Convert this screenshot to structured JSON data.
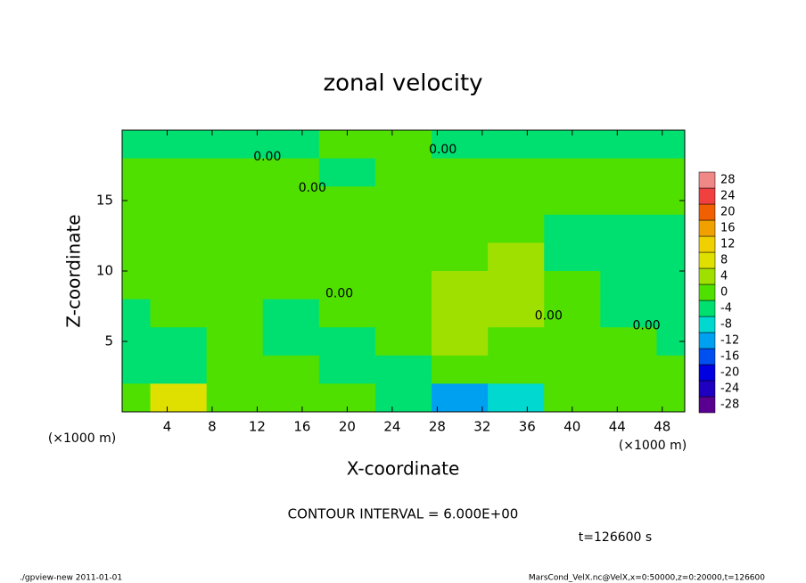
{
  "chart_data": {
    "type": "contour",
    "title": "zonal velocity",
    "xlabel": "X-coordinate",
    "ylabel": "Z-coordinate",
    "xunit": "(×1000 m)",
    "yunit": "(×1000 m)",
    "xlim": [
      0,
      50
    ],
    "ylim": [
      0,
      20
    ],
    "xticks": [
      4,
      8,
      12,
      16,
      20,
      24,
      28,
      32,
      36,
      40,
      44,
      48
    ],
    "yticks": [
      5,
      10,
      15
    ],
    "x": [
      0,
      5,
      10,
      15,
      20,
      25,
      30,
      35,
      40,
      45,
      50
    ],
    "z": [
      19,
      17,
      15,
      13,
      11,
      9,
      7,
      5,
      3,
      1
    ],
    "values": [
      [
        -1,
        -1,
        -2,
        -1,
        1,
        1,
        -1,
        -1,
        -2,
        -1,
        -1
      ],
      [
        2,
        2,
        1,
        1,
        -1,
        1,
        2,
        1,
        1,
        2,
        1
      ],
      [
        2,
        2,
        2,
        3,
        2,
        1,
        2,
        1,
        1,
        0,
        1
      ],
      [
        2,
        3,
        3,
        3,
        3,
        2,
        2,
        2,
        -1,
        -2,
        -1
      ],
      [
        2,
        3,
        3,
        3,
        3,
        2,
        3,
        4,
        -2,
        -2,
        -1
      ],
      [
        1,
        2,
        2,
        2,
        2,
        2,
        6,
        5,
        1,
        -2,
        -1
      ],
      [
        -2,
        1,
        1,
        -1,
        1,
        2,
        7,
        6,
        2,
        -2,
        -4
      ],
      [
        -3,
        -4,
        1,
        -1,
        -2,
        3,
        5,
        3,
        2,
        0,
        -3
      ],
      [
        -3,
        -3,
        0,
        2,
        -1,
        -1,
        2,
        1,
        1,
        1,
        0
      ],
      [
        2,
        8,
        1,
        2,
        1,
        -1,
        -9,
        -6,
        1,
        3,
        2
      ]
    ],
    "levels": [
      -28,
      -24,
      -20,
      -16,
      -12,
      -8,
      -4,
      0,
      4,
      8,
      12,
      16,
      20,
      24,
      28
    ],
    "colors": [
      "#5a0090",
      "#2000c0",
      "#0000e0",
      "#0050f0",
      "#00a0f0",
      "#00d8d0",
      "#00e070",
      "#50e000",
      "#a0e000",
      "#e0e000",
      "#f0d000",
      "#f0a000",
      "#f06000",
      "#f04040",
      "#f08888"
    ],
    "contour_labels": [
      {
        "text": "0.00",
        "x": 28.5,
        "z": 18.6
      },
      {
        "text": "0.00",
        "x": 12.9,
        "z": 18.1
      },
      {
        "text": "0.00",
        "x": 16.9,
        "z": 15.9
      },
      {
        "text": "0.00",
        "x": 19.3,
        "z": 8.4
      },
      {
        "text": "0.00",
        "x": 37.9,
        "z": 6.8
      },
      {
        "text": "0.00",
        "x": 46.6,
        "z": 6.1
      }
    ],
    "note": "CONTOUR INTERVAL = 6.000E+00",
    "time": "t=126600 s",
    "footer_left": "./gpview-new   2011-01-01",
    "footer_right": "MarsCond_VelX.nc@VelX,x=0:50000,z=0:20000,t=126600"
  }
}
